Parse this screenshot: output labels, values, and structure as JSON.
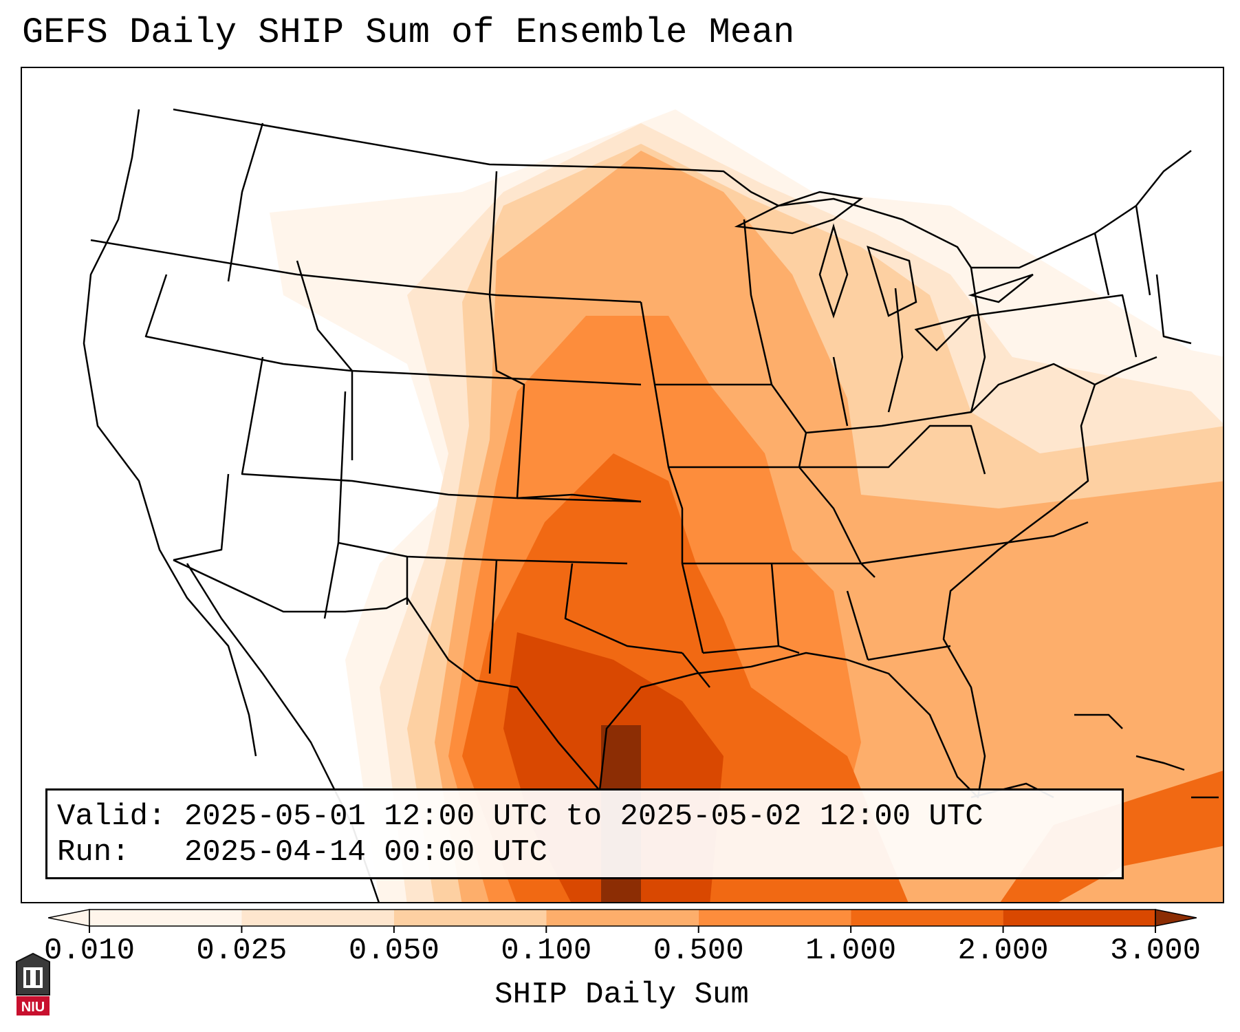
{
  "title": "GEFS Daily SHIP Sum of Ensemble Mean",
  "valid": {
    "label": "Valid:",
    "value": "2025-05-01 12:00 UTC to 2025-05-02 12:00 UTC"
  },
  "run": {
    "label": "Run:",
    "value": "2025-04-14 00:00 UTC"
  },
  "colorbar": {
    "label": "SHIP Daily Sum",
    "ticks": [
      "0.010",
      "0.025",
      "0.050",
      "0.100",
      "0.500",
      "1.000",
      "2.000",
      "3.000"
    ],
    "colors": [
      "#fff5eb",
      "#fee6ce",
      "#fdd0a2",
      "#fdae6b",
      "#fd8d3c",
      "#f16913",
      "#d94801",
      "#8c2d04"
    ],
    "extend": "both"
  },
  "logo": {
    "text": "NIU",
    "icon": "niu-university-logo-icon"
  },
  "map": {
    "projection": "lambert-conformal",
    "region": "CONUS",
    "features": [
      "state-borders",
      "country-borders",
      "coastlines"
    ]
  }
}
